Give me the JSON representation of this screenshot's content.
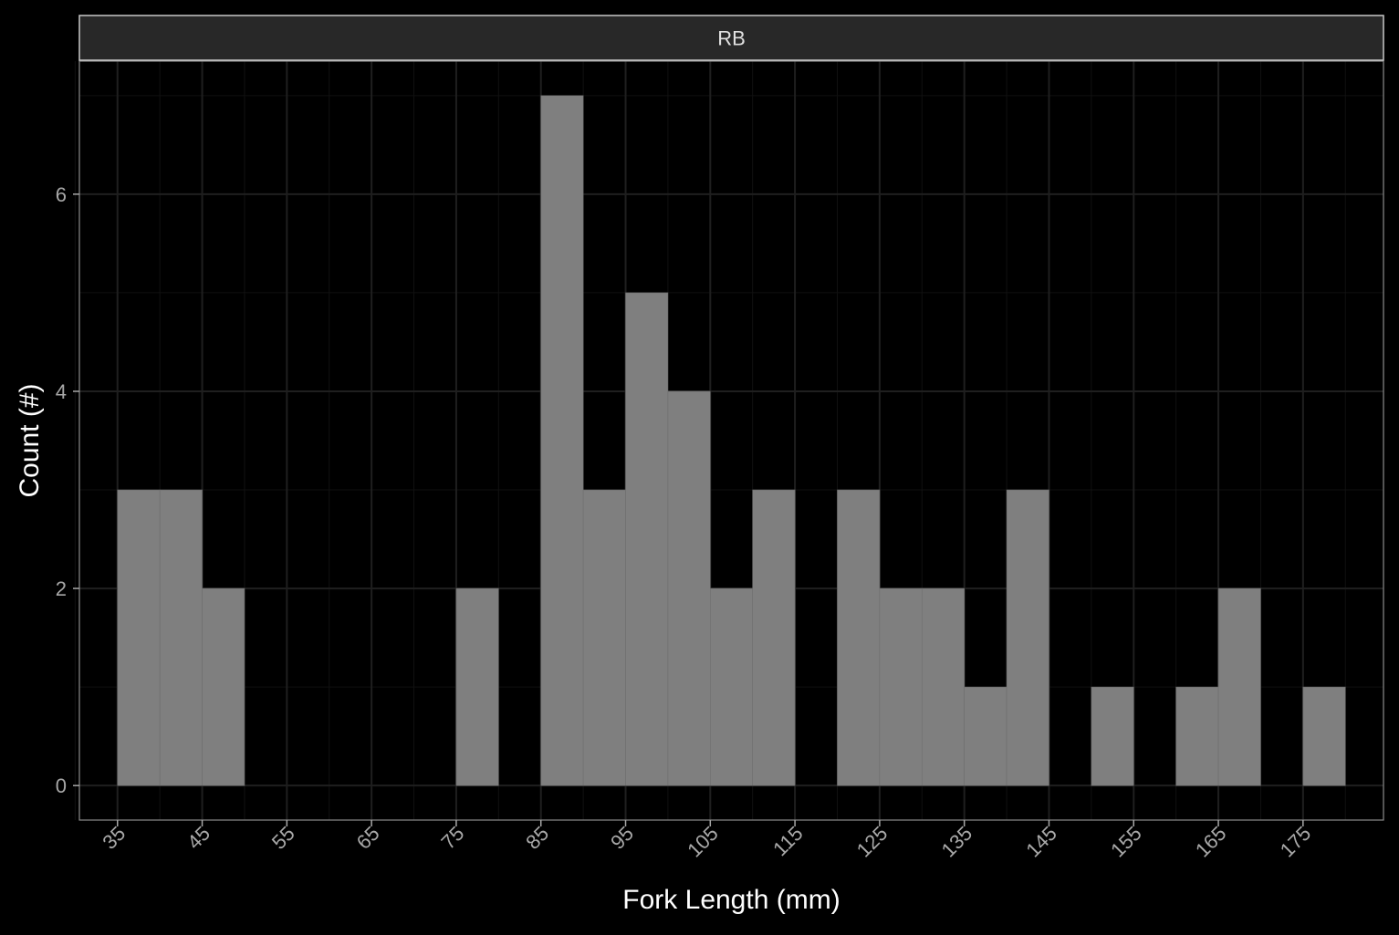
{
  "chart_data": {
    "type": "bar",
    "title": "",
    "facet_label": "RB",
    "xlabel": "Fork Length (mm)",
    "ylabel": "Count (#)",
    "bin_width": 5,
    "bins": [
      {
        "start": 35,
        "end": 40,
        "count": 3
      },
      {
        "start": 40,
        "end": 45,
        "count": 3
      },
      {
        "start": 45,
        "end": 50,
        "count": 2
      },
      {
        "start": 50,
        "end": 55,
        "count": 0
      },
      {
        "start": 55,
        "end": 60,
        "count": 0
      },
      {
        "start": 60,
        "end": 65,
        "count": 0
      },
      {
        "start": 65,
        "end": 70,
        "count": 0
      },
      {
        "start": 70,
        "end": 75,
        "count": 0
      },
      {
        "start": 75,
        "end": 80,
        "count": 2
      },
      {
        "start": 80,
        "end": 85,
        "count": 0
      },
      {
        "start": 85,
        "end": 90,
        "count": 7
      },
      {
        "start": 90,
        "end": 95,
        "count": 3
      },
      {
        "start": 95,
        "end": 100,
        "count": 5
      },
      {
        "start": 100,
        "end": 105,
        "count": 4
      },
      {
        "start": 105,
        "end": 110,
        "count": 2
      },
      {
        "start": 110,
        "end": 115,
        "count": 3
      },
      {
        "start": 115,
        "end": 120,
        "count": 0
      },
      {
        "start": 120,
        "end": 125,
        "count": 3
      },
      {
        "start": 125,
        "end": 130,
        "count": 2
      },
      {
        "start": 130,
        "end": 135,
        "count": 2
      },
      {
        "start": 135,
        "end": 140,
        "count": 1
      },
      {
        "start": 140,
        "end": 145,
        "count": 3
      },
      {
        "start": 145,
        "end": 150,
        "count": 0
      },
      {
        "start": 150,
        "end": 155,
        "count": 1
      },
      {
        "start": 155,
        "end": 160,
        "count": 0
      },
      {
        "start": 160,
        "end": 165,
        "count": 1
      },
      {
        "start": 165,
        "end": 170,
        "count": 2
      },
      {
        "start": 170,
        "end": 175,
        "count": 0
      },
      {
        "start": 175,
        "end": 180,
        "count": 1
      }
    ],
    "x_ticks": [
      "35",
      "45",
      "55",
      "65",
      "75",
      "85",
      "95",
      "105",
      "115",
      "125",
      "135",
      "145",
      "155",
      "165",
      "175"
    ],
    "y_ticks": [
      "0",
      "2",
      "4",
      "6"
    ],
    "xlim": [
      30.5,
      184.5
    ],
    "ylim": [
      -0.35,
      7.35
    ],
    "grid": true,
    "legend": "none",
    "colors": {
      "background": "#000000",
      "panel_border": "#8c8c8c",
      "grid_major": "#1f1f1f",
      "grid_minor": "#111111",
      "bar_fill": "#7f7f7f",
      "bar_outline": "#6e6e6e",
      "strip_fill": "#282828",
      "strip_border": "#c8c8c8",
      "strip_text": "#e0e0e0",
      "tick_text": "#a8a8a8",
      "axis_title": "#ffffff"
    }
  }
}
